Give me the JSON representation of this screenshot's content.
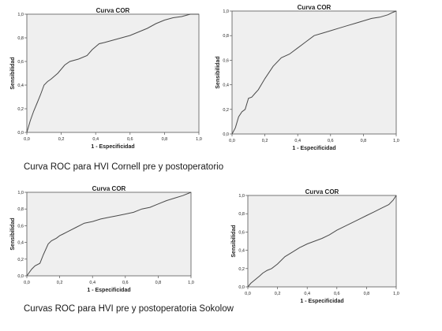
{
  "captions": {
    "top": "Curva ROC para HVI Cornell pre y postoperatorio",
    "bottom": "Curvas ROC para HVI pre y postoperatoria  Sokolow"
  },
  "colors": {
    "plot_bg": "#efefef",
    "curve": "#4a4a4a",
    "axis": "#555555",
    "text": "#222222"
  },
  "chart_data": [
    {
      "type": "line",
      "title": "Curva COR",
      "xlabel": "1 - Especificidad",
      "ylabel": "Sensibilidad",
      "xlim": [
        0,
        1
      ],
      "ylim": [
        0,
        1
      ],
      "xticks": [
        "0,0",
        "0,2",
        "0,4",
        "0,6",
        "0,8",
        "1,0"
      ],
      "yticks": [
        "0,0",
        "0,2",
        "0,4",
        "0,6",
        "0,8",
        "1,0"
      ],
      "grid": false,
      "x": [
        0,
        0.02,
        0.04,
        0.06,
        0.08,
        0.1,
        0.12,
        0.14,
        0.18,
        0.22,
        0.25,
        0.3,
        0.35,
        0.38,
        0.42,
        0.45,
        0.5,
        0.55,
        0.6,
        0.65,
        0.7,
        0.75,
        0.8,
        0.85,
        0.9,
        0.95,
        1.0
      ],
      "y": [
        0,
        0.1,
        0.18,
        0.25,
        0.32,
        0.4,
        0.43,
        0.45,
        0.5,
        0.57,
        0.6,
        0.62,
        0.65,
        0.7,
        0.75,
        0.76,
        0.78,
        0.8,
        0.82,
        0.85,
        0.88,
        0.92,
        0.95,
        0.97,
        0.98,
        1.0,
        1.0
      ]
    },
    {
      "type": "line",
      "title": "Curva COR",
      "xlabel": "1 - Especificidad",
      "ylabel": "Sensibilidad",
      "xlim": [
        0,
        1
      ],
      "ylim": [
        0,
        1
      ],
      "xticks": [
        "0,0",
        "0,2",
        "0,4",
        "0,6",
        "0,8",
        "1,0"
      ],
      "yticks": [
        "0,0",
        "0,2",
        "0,4",
        "0,6",
        "0,8",
        "1,0"
      ],
      "grid": false,
      "x": [
        0,
        0.02,
        0.04,
        0.06,
        0.08,
        0.1,
        0.12,
        0.14,
        0.16,
        0.2,
        0.25,
        0.3,
        0.35,
        0.4,
        0.45,
        0.5,
        0.55,
        0.6,
        0.65,
        0.7,
        0.75,
        0.8,
        0.85,
        0.9,
        0.95,
        0.98,
        1.0
      ],
      "y": [
        0,
        0.05,
        0.14,
        0.18,
        0.2,
        0.29,
        0.3,
        0.33,
        0.36,
        0.45,
        0.55,
        0.62,
        0.65,
        0.7,
        0.75,
        0.8,
        0.82,
        0.84,
        0.86,
        0.88,
        0.9,
        0.92,
        0.94,
        0.95,
        0.97,
        0.99,
        1.0
      ]
    },
    {
      "type": "line",
      "title": "Curva COR",
      "xlabel": "1 - Especificidad",
      "ylabel": "Sensibilidad",
      "xlim": [
        0,
        1
      ],
      "ylim": [
        0,
        1
      ],
      "xticks": [
        "0,0",
        "0,2",
        "0,4",
        "0,6",
        "0,8",
        "1,0"
      ],
      "yticks": [
        "0,0",
        "0,2",
        "0,4",
        "0,6",
        "0,8",
        "1,0"
      ],
      "grid": false,
      "x": [
        0,
        0.03,
        0.05,
        0.08,
        0.1,
        0.13,
        0.15,
        0.18,
        0.2,
        0.22,
        0.25,
        0.3,
        0.35,
        0.4,
        0.45,
        0.5,
        0.55,
        0.6,
        0.65,
        0.7,
        0.75,
        0.8,
        0.85,
        0.9,
        0.95,
        1.0
      ],
      "y": [
        0,
        0.08,
        0.12,
        0.15,
        0.25,
        0.38,
        0.42,
        0.45,
        0.48,
        0.5,
        0.53,
        0.58,
        0.63,
        0.65,
        0.68,
        0.7,
        0.72,
        0.74,
        0.76,
        0.8,
        0.82,
        0.86,
        0.9,
        0.93,
        0.96,
        1.0
      ]
    },
    {
      "type": "line",
      "title": "Curva COR",
      "xlabel": "1 - Especificidad",
      "ylabel": "Sensibilidad",
      "xlim": [
        0,
        1
      ],
      "ylim": [
        0,
        1
      ],
      "xticks": [
        "0,0",
        "0,2",
        "0,4",
        "0,6",
        "0,8",
        "1,0"
      ],
      "yticks": [
        "0,0",
        "0,2",
        "0,4",
        "0,6",
        "0,8",
        "1,0"
      ],
      "grid": false,
      "x": [
        0,
        0.02,
        0.05,
        0.08,
        0.1,
        0.13,
        0.16,
        0.2,
        0.25,
        0.3,
        0.35,
        0.4,
        0.45,
        0.5,
        0.55,
        0.6,
        0.65,
        0.7,
        0.75,
        0.8,
        0.85,
        0.9,
        0.95,
        0.98,
        1.0
      ],
      "y": [
        0,
        0.04,
        0.08,
        0.12,
        0.15,
        0.18,
        0.2,
        0.25,
        0.33,
        0.38,
        0.43,
        0.47,
        0.5,
        0.53,
        0.57,
        0.62,
        0.66,
        0.7,
        0.74,
        0.78,
        0.82,
        0.86,
        0.9,
        0.95,
        1.0
      ]
    }
  ]
}
